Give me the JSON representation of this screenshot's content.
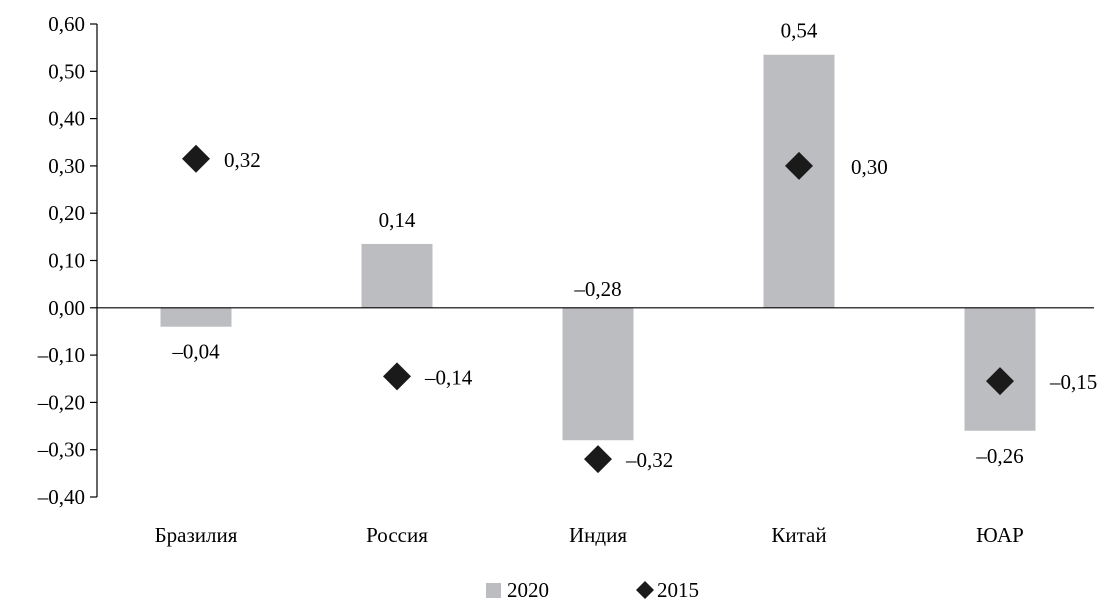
{
  "chart_data": {
    "type": "bar",
    "categories": [
      "Бразилия",
      "Россия",
      "Индия",
      "Китай",
      "ЮАР"
    ],
    "series": [
      {
        "name": "2020",
        "kind": "bar",
        "color": "#bcbdc0",
        "values": [
          -0.04,
          0.135,
          -0.28,
          0.535,
          -0.26
        ],
        "labels": [
          "–0,04",
          "0,14",
          "–0,28",
          "0,54",
          "–0,26"
        ]
      },
      {
        "name": "2015",
        "kind": "marker",
        "marker": "diamond",
        "color": "#1a1a1a",
        "values": [
          0.315,
          -0.145,
          -0.32,
          0.3,
          -0.155
        ],
        "labels": [
          "0,32",
          "–0,14",
          "–0,32",
          "0,30",
          "–0,15"
        ]
      }
    ],
    "ylim": [
      -0.4,
      0.6
    ],
    "yticks": [
      0.6,
      0.5,
      0.4,
      0.3,
      0.2,
      0.1,
      0.0,
      -0.1,
      -0.2,
      -0.3,
      -0.4
    ],
    "ytick_labels": [
      "0,60",
      "0,50",
      "0,40",
      "0,30",
      "0,20",
      "0,10",
      "0,00",
      "–0,10",
      "–0,20",
      "–0,30",
      "–0,40"
    ],
    "title": "",
    "xlabel": "",
    "ylabel": "",
    "grid": false,
    "legend_position": "bottom-center"
  }
}
